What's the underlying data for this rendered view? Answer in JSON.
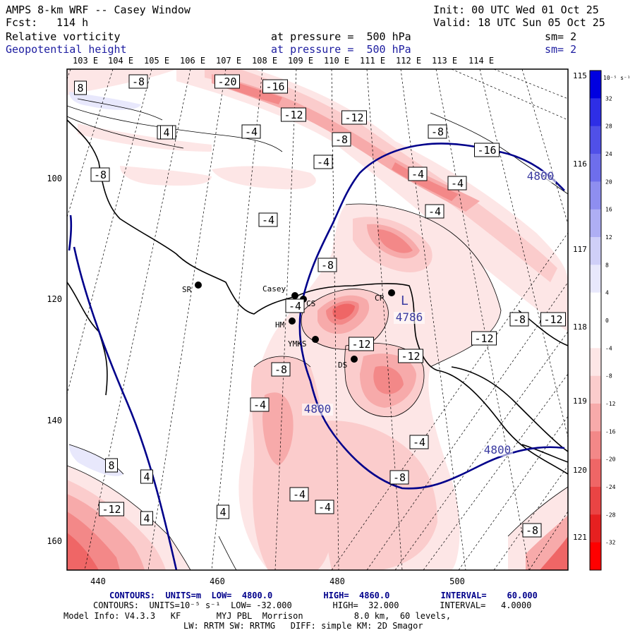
{
  "header": {
    "title": "AMPS 8-km WRF -- Casey Window",
    "init": "Init: 00 UTC Wed 01 Oct 25",
    "fcst_label": "Fcst:",
    "fcst_value": "114 h",
    "valid": "Valid: 18 UTC Sun 05 Oct 25"
  },
  "fields": [
    {
      "name": "Relative vorticity",
      "level": "at pressure =  500 hPa",
      "sm": "sm= 2"
    },
    {
      "name": "Geopotential height",
      "level": "at pressure =  500 hPa",
      "sm": "sm= 2"
    }
  ],
  "lon_labels_top": [
    "103 E",
    "104 E",
    "105 E",
    "106 E",
    "107 E",
    "108 E",
    "109 E",
    "110 E",
    "111 E",
    "112 E",
    "113 E",
    "114 E"
  ],
  "lon_labels_right": [
    "115 E",
    "116 E",
    "117 E",
    "118 E",
    "119 E",
    "120 E",
    "121 E"
  ],
  "x_ticks": [
    "440",
    "460",
    "480",
    "500"
  ],
  "y_ticks": [
    "100",
    "120",
    "140",
    "160"
  ],
  "colorbar": {
    "units": "10⁻⁵ s⁻¹",
    "labels": [
      "32",
      "28",
      "24",
      "20",
      "16",
      "12",
      "8",
      "4",
      "0",
      "-4",
      "-8",
      "-12",
      "-16",
      "-20",
      "-24",
      "-28",
      "-32"
    ],
    "colors": [
      "#0000e0",
      "#2e2ee6",
      "#5050e8",
      "#6e6eec",
      "#8e8ef0",
      "#aeaef4",
      "#cfcff8",
      "#e8e8fc",
      "#ffffff",
      "#ffffff",
      "#fde6e6",
      "#fbcccc",
      "#f7aaaa",
      "#f38888",
      "#ef6666",
      "#ea4444",
      "#e62020",
      "#ff0000"
    ]
  },
  "contour_labels": {
    "vorticity": [
      "-8",
      "-20",
      "-16",
      "-12",
      "-12",
      "-4",
      "-4",
      "-8",
      "-8",
      "-4",
      "-16",
      "-8",
      "-4",
      "-4",
      "-4",
      "-4",
      "-8",
      "-4",
      "-8",
      "-12",
      "-12",
      "-12",
      "-12",
      "-8",
      "-4",
      "-8",
      "-4",
      "-4",
      "-12",
      "-4",
      "8",
      "4",
      "8",
      "4",
      "4",
      "4",
      "-8"
    ],
    "height": [
      "4800",
      "4800",
      "4800",
      "4786"
    ],
    "extrema": [
      "L"
    ]
  },
  "stations": [
    "SR",
    "Casey",
    "CS",
    "CP",
    "HM",
    "YMKS",
    "DS"
  ],
  "footer": {
    "height_contours": "CONTOURS:  UNITS=m  LOW=  4800.0          HIGH=  4860.0          INTERVAL=    60.000",
    "vort_contours": "CONTOURS:  UNITS=10⁻⁵ s⁻¹  LOW= -32.000        HIGH=  32.000        INTERVAL=   4.0000",
    "model_info": "Model Info: V4.3.3   KF       MYJ PBL  Morrison          8.0 km,  60 levels,",
    "model_info2": "LW: RRTM SW: RRTMG   DIFF: simple KM: 2D Smagor"
  }
}
